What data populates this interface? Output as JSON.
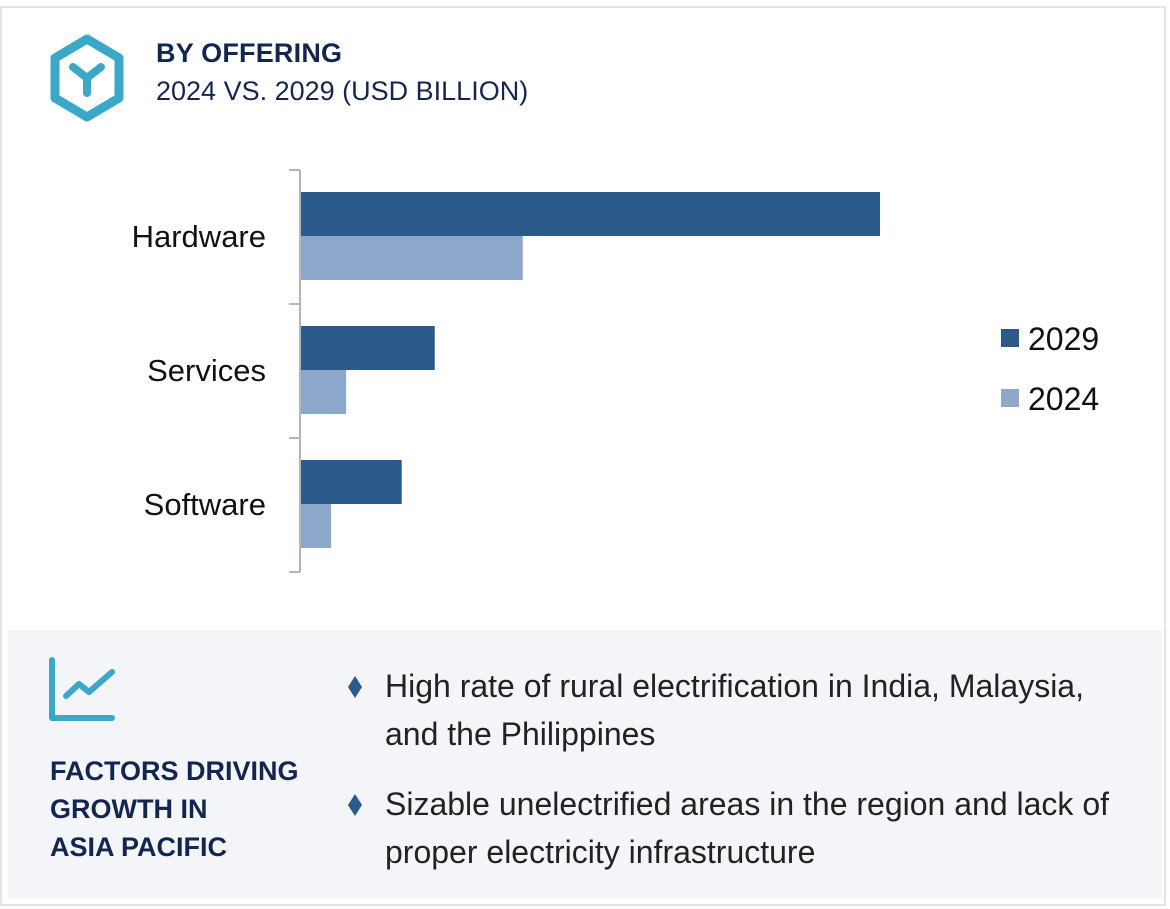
{
  "header": {
    "title": "BY OFFERING",
    "subtitle": "2024 VS. 2029 (USD BILLION)",
    "icon": "hexagon-cube-icon"
  },
  "colors": {
    "series_2029": "#2c5b8b",
    "series_2024": "#8ea8cc",
    "accent": "#3aa8c6",
    "heading": "#14264f",
    "axis": "#b5b5b5"
  },
  "chart_data": {
    "type": "bar",
    "orientation": "horizontal",
    "title": "BY OFFERING",
    "subtitle": "2024 VS. 2029 (USD BILLION)",
    "xlabel": "",
    "ylabel": "",
    "value_scale": "relative (Hardware 2029 = 100; no value axis printed)",
    "categories": [
      "Hardware",
      "Services",
      "Software"
    ],
    "series": [
      {
        "name": "2029",
        "values": [
          100,
          23.1,
          17.4
        ]
      },
      {
        "name": "2024",
        "values": [
          38.3,
          7.8,
          5.2
        ]
      }
    ],
    "xlim": [
      0,
      100
    ],
    "grid": false,
    "legend": {
      "position": "right",
      "entries": [
        "2029",
        "2024"
      ]
    }
  },
  "factors_panel": {
    "icon": "line-chart-icon",
    "title_lines": [
      "FACTORS DRIVING",
      "GROWTH IN",
      "ASIA PACIFIC"
    ],
    "bullet_icon": "diamond-bullet-icon",
    "items": [
      {
        "text": "High rate of rural electrification in India, Malaysia, and the Philippines"
      },
      {
        "text": "Sizable unelectrified areas in the region and lack of proper electricity infrastructure"
      }
    ]
  }
}
